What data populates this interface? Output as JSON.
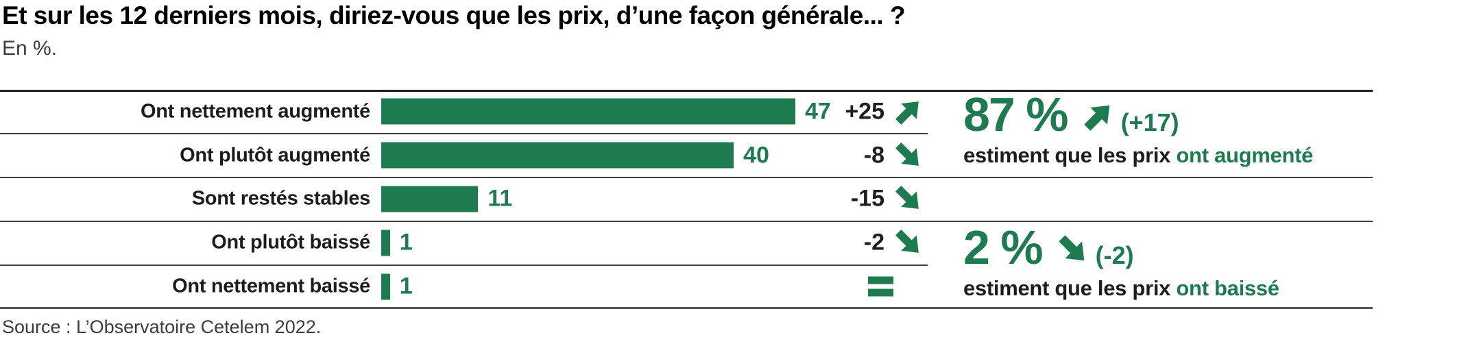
{
  "colors": {
    "green": "#1e7b50",
    "text_black": "#1d1d1b",
    "line_gray": "#3d3d3c",
    "background": "#ffffff"
  },
  "chart_data": {
    "type": "bar",
    "orientation": "horizontal",
    "title": "Et sur les 12 derniers mois, diriez-vous que les prix, d’une façon générale... ?",
    "subtitle": "En %.",
    "unit": "%",
    "categories": [
      "Ont nettement augmenté",
      "Ont plutôt augmenté",
      "Sont restés stables",
      "Ont plutôt baissé",
      "Ont nettement baissé"
    ],
    "values": [
      47,
      40,
      11,
      1,
      1
    ],
    "changes": [
      "+25",
      "-8",
      "-15",
      "-2",
      "="
    ],
    "change_directions": [
      "up",
      "down",
      "down",
      "down",
      "equal"
    ],
    "xlim": [
      0,
      50
    ],
    "grid": false,
    "legend": "none",
    "source": "Source : L’Observatoire Cetelem 2022.",
    "summaries": [
      {
        "value": "87 %",
        "direction": "up",
        "delta": "(+17)",
        "text_black": "estiment que les prix",
        "text_green": "ont augmenté"
      },
      {
        "value": "2 %",
        "direction": "down",
        "delta": "(-2)",
        "text_black": "estiment que les prix",
        "text_green": "ont baissé"
      }
    ]
  }
}
